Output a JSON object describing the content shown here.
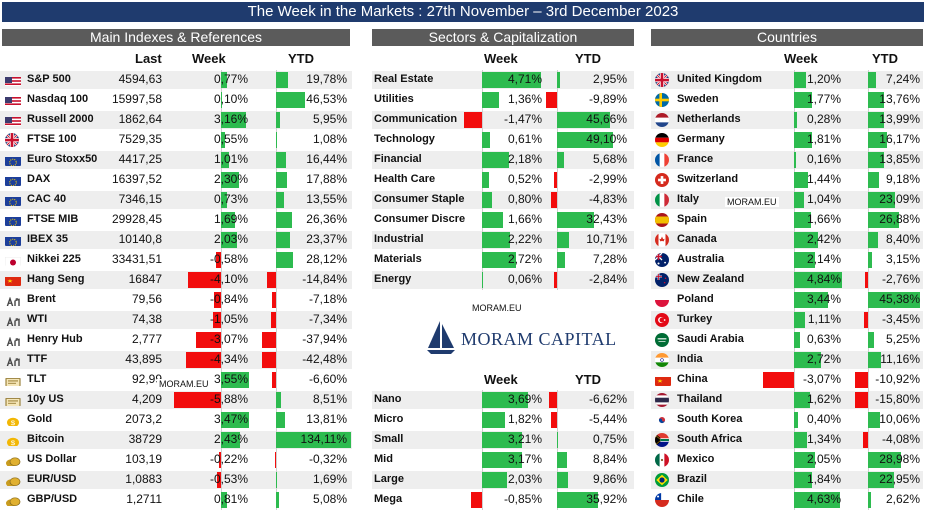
{
  "header": {
    "title": "The Week in the Markets : 27th November – 3rd December 2023"
  },
  "sections": {
    "main": {
      "title": "Main Indexes & References",
      "col_last": "Last",
      "col_week": "Week",
      "col_ytd": "YTD"
    },
    "sectors": {
      "title": "Sectors & Capitalization",
      "col_week": "Week",
      "col_ytd": "YTD"
    },
    "caps": {
      "col_week": "Week",
      "col_ytd": "YTD"
    },
    "countries": {
      "title": "Countries",
      "col_week": "Week",
      "col_ytd": "YTD"
    }
  },
  "watermarks": {
    "main": "MORAM.EU",
    "center": "MORAM.EU",
    "countries": "MORAM.EU"
  },
  "logo": {
    "text": "MORAM CAPITAL"
  },
  "colors": {
    "header": "#1f3b6e",
    "section": "#5b5b5b",
    "positive": "#2dbb4f",
    "negative": "#f20d0d"
  },
  "main_rows": [
    {
      "name": "S&P 500",
      "flag": "us-flag",
      "last": "4594,63",
      "week": "0,77%",
      "week_v": 0.77,
      "ytd": "19,78%",
      "ytd_v": 19.78
    },
    {
      "name": "Nasdaq 100",
      "flag": "us-flag",
      "last": "15997,58",
      "week": "0,10%",
      "week_v": 0.1,
      "ytd": "46,53%",
      "ytd_v": 46.53
    },
    {
      "name": "Russell 2000",
      "flag": "us-flag",
      "last": "1862,64",
      "week": "3,16%",
      "week_v": 3.16,
      "ytd": "5,95%",
      "ytd_v": 5.95
    },
    {
      "name": "FTSE 100",
      "flag": "uk-flag",
      "last": "7529,35",
      "week": "0,55%",
      "week_v": 0.55,
      "ytd": "1,08%",
      "ytd_v": 1.08
    },
    {
      "name": "Euro Stoxx50",
      "flag": "eu-flag",
      "last": "4417,25",
      "week": "1,01%",
      "week_v": 1.01,
      "ytd": "16,44%",
      "ytd_v": 16.44
    },
    {
      "name": "DAX",
      "flag": "eu-flag",
      "last": "16397,52",
      "week": "2,30%",
      "week_v": 2.3,
      "ytd": "17,88%",
      "ytd_v": 17.88
    },
    {
      "name": "CAC 40",
      "flag": "eu-flag",
      "last": "7346,15",
      "week": "0,73%",
      "week_v": 0.73,
      "ytd": "13,55%",
      "ytd_v": 13.55
    },
    {
      "name": "FTSE MIB",
      "flag": "eu-flag",
      "last": "29928,45",
      "week": "1,69%",
      "week_v": 1.69,
      "ytd": "26,36%",
      "ytd_v": 26.36
    },
    {
      "name": "IBEX 35",
      "flag": "eu-flag",
      "last": "10140,8",
      "week": "2,03%",
      "week_v": 2.03,
      "ytd": "23,37%",
      "ytd_v": 23.37
    },
    {
      "name": "Nikkei 225",
      "flag": "jp-flag",
      "last": "33431,51",
      "week": "-0,58%",
      "week_v": -0.58,
      "ytd": "28,12%",
      "ytd_v": 28.12
    },
    {
      "name": "Hang Seng",
      "flag": "cn-flag",
      "last": "16847",
      "week": "-4,10%",
      "week_v": -4.1,
      "ytd": "-14,84%",
      "ytd_v": -14.84
    },
    {
      "name": "Brent",
      "flag": "oil-icon",
      "last": "79,56",
      "week": "-0,84%",
      "week_v": -0.84,
      "ytd": "-7,18%",
      "ytd_v": -7.18
    },
    {
      "name": "WTI",
      "flag": "oil-icon",
      "last": "74,38",
      "week": "-1,05%",
      "week_v": -1.05,
      "ytd": "-7,34%",
      "ytd_v": -7.34
    },
    {
      "name": "Henry Hub",
      "flag": "oil-icon",
      "last": "2,777",
      "week": "-3,07%",
      "week_v": -3.07,
      "ytd": "-37,94%",
      "ytd_v": -37.94
    },
    {
      "name": "TTF",
      "flag": "oil-icon",
      "last": "43,895",
      "week": "-4,34%",
      "week_v": -4.34,
      "ytd": "-42,48%",
      "ytd_v": -42.48
    },
    {
      "name": "TLT",
      "flag": "bond-icon",
      "last": "92,99",
      "week": "3,55%",
      "week_v": 3.55,
      "ytd": "-6,60%",
      "ytd_v": -6.6
    },
    {
      "name": "10y US",
      "flag": "bond-icon",
      "last": "4,209",
      "week": "-5,88%",
      "week_v": -5.88,
      "ytd": "8,51%",
      "ytd_v": 8.51
    },
    {
      "name": "Gold",
      "flag": "gold-icon",
      "last": "2073,2",
      "week": "3,47%",
      "week_v": 3.47,
      "ytd": "13,81%",
      "ytd_v": 13.81
    },
    {
      "name": "Bitcoin",
      "flag": "gold-icon",
      "last": "38729",
      "week": "2,43%",
      "week_v": 2.43,
      "ytd": "134,11%",
      "ytd_v": 134.11
    },
    {
      "name": "US Dollar",
      "flag": "coins-icon",
      "last": "103,19",
      "week": "-0,22%",
      "week_v": -0.22,
      "ytd": "-0,32%",
      "ytd_v": -0.32
    },
    {
      "name": "EUR/USD",
      "flag": "coins-icon",
      "last": "1,0883",
      "week": "-0,53%",
      "week_v": -0.53,
      "ytd": "1,69%",
      "ytd_v": 1.69
    },
    {
      "name": "GBP/USD",
      "flag": "coins-icon",
      "last": "1,2711",
      "week": "0,81%",
      "week_v": 0.81,
      "ytd": "5,08%",
      "ytd_v": 5.08
    }
  ],
  "sector_rows": [
    {
      "name": "Real Estate",
      "week": "4,71%",
      "week_v": 4.71,
      "ytd": "2,95%",
      "ytd_v": 2.95
    },
    {
      "name": "Utilities",
      "week": "1,36%",
      "week_v": 1.36,
      "ytd": "-9,89%",
      "ytd_v": -9.89
    },
    {
      "name": "Communication",
      "week": "-1,47%",
      "week_v": -1.47,
      "ytd": "45,66%",
      "ytd_v": 45.66
    },
    {
      "name": "Technology",
      "week": "0,61%",
      "week_v": 0.61,
      "ytd": "49,10%",
      "ytd_v": 49.1
    },
    {
      "name": "Financial",
      "week": "2,18%",
      "week_v": 2.18,
      "ytd": "5,68%",
      "ytd_v": 5.68
    },
    {
      "name": "Health Care",
      "week": "0,52%",
      "week_v": 0.52,
      "ytd": "-2,99%",
      "ytd_v": -2.99
    },
    {
      "name": "Consumer Staple",
      "week": "0,80%",
      "week_v": 0.8,
      "ytd": "-4,83%",
      "ytd_v": -4.83
    },
    {
      "name": "Consumer Discre",
      "week": "1,66%",
      "week_v": 1.66,
      "ytd": "32,43%",
      "ytd_v": 32.43
    },
    {
      "name": "Industrial",
      "week": "2,22%",
      "week_v": 2.22,
      "ytd": "10,71%",
      "ytd_v": 10.71
    },
    {
      "name": "Materials",
      "week": "2,72%",
      "week_v": 2.72,
      "ytd": "7,28%",
      "ytd_v": 7.28
    },
    {
      "name": "Energy",
      "week": "0,06%",
      "week_v": 0.06,
      "ytd": "-2,84%",
      "ytd_v": -2.84
    }
  ],
  "cap_rows": [
    {
      "name": "Nano",
      "week": "3,69%",
      "week_v": 3.69,
      "ytd": "-6,62%",
      "ytd_v": -6.62
    },
    {
      "name": "Micro",
      "week": "1,82%",
      "week_v": 1.82,
      "ytd": "-5,44%",
      "ytd_v": -5.44
    },
    {
      "name": "Small",
      "week": "3,21%",
      "week_v": 3.21,
      "ytd": "0,75%",
      "ytd_v": 0.75
    },
    {
      "name": "Mid",
      "week": "3,17%",
      "week_v": 3.17,
      "ytd": "8,84%",
      "ytd_v": 8.84
    },
    {
      "name": "Large",
      "week": "2,03%",
      "week_v": 2.03,
      "ytd": "9,86%",
      "ytd_v": 9.86
    },
    {
      "name": "Mega",
      "week": "-0,85%",
      "week_v": -0.85,
      "ytd": "35,92%",
      "ytd_v": 35.92
    }
  ],
  "country_rows": [
    {
      "name": "United Kingdom",
      "flag": "uk-flag",
      "week": "1,20%",
      "week_v": 1.2,
      "ytd": "7,24%",
      "ytd_v": 7.24
    },
    {
      "name": "Sweden",
      "flag": "se-flag",
      "week": "1,77%",
      "week_v": 1.77,
      "ytd": "13,76%",
      "ytd_v": 13.76
    },
    {
      "name": "Netherlands",
      "flag": "nl-flag",
      "week": "0,28%",
      "week_v": 0.28,
      "ytd": "13,99%",
      "ytd_v": 13.99
    },
    {
      "name": "Germany",
      "flag": "de-flag",
      "week": "1,81%",
      "week_v": 1.81,
      "ytd": "16,17%",
      "ytd_v": 16.17
    },
    {
      "name": "France",
      "flag": "fr-flag",
      "week": "0,16%",
      "week_v": 0.16,
      "ytd": "13,85%",
      "ytd_v": 13.85
    },
    {
      "name": "Switzerland",
      "flag": "ch-flag",
      "week": "1,44%",
      "week_v": 1.44,
      "ytd": "9,18%",
      "ytd_v": 9.18
    },
    {
      "name": "Italy",
      "flag": "it-flag",
      "week": "1,04%",
      "week_v": 1.04,
      "ytd": "23,09%",
      "ytd_v": 23.09
    },
    {
      "name": "Spain",
      "flag": "es-flag",
      "week": "1,66%",
      "week_v": 1.66,
      "ytd": "26,88%",
      "ytd_v": 26.88
    },
    {
      "name": "Canada",
      "flag": "ca-flag",
      "week": "2,42%",
      "week_v": 2.42,
      "ytd": "8,40%",
      "ytd_v": 8.4
    },
    {
      "name": "Australia",
      "flag": "au-flag",
      "week": "2,14%",
      "week_v": 2.14,
      "ytd": "3,15%",
      "ytd_v": 3.15
    },
    {
      "name": "New Zealand",
      "flag": "nz-flag",
      "week": "4,84%",
      "week_v": 4.84,
      "ytd": "-2,76%",
      "ytd_v": -2.76
    },
    {
      "name": "Poland",
      "flag": "pl-flag",
      "week": "3,44%",
      "week_v": 3.44,
      "ytd": "45,38%",
      "ytd_v": 45.38
    },
    {
      "name": "Turkey",
      "flag": "tr-flag",
      "week": "1,11%",
      "week_v": 1.11,
      "ytd": "-3,45%",
      "ytd_v": -3.45
    },
    {
      "name": "Saudi Arabia",
      "flag": "sa-flag",
      "week": "0,63%",
      "week_v": 0.63,
      "ytd": "5,25%",
      "ytd_v": 5.25
    },
    {
      "name": "India",
      "flag": "in-flag",
      "week": "2,72%",
      "week_v": 2.72,
      "ytd": "11,16%",
      "ytd_v": 11.16
    },
    {
      "name": "China",
      "flag": "cn-flag",
      "week": "-3,07%",
      "week_v": -3.07,
      "ytd": "-10,92%",
      "ytd_v": -10.92
    },
    {
      "name": "Thailand",
      "flag": "th-flag",
      "week": "1,62%",
      "week_v": 1.62,
      "ytd": "-15,80%",
      "ytd_v": -15.8
    },
    {
      "name": "South Korea",
      "flag": "kr-flag",
      "week": "0,40%",
      "week_v": 0.4,
      "ytd": "10,06%",
      "ytd_v": 10.06
    },
    {
      "name": "South Africa",
      "flag": "za-flag",
      "week": "1,34%",
      "week_v": 1.34,
      "ytd": "-4,08%",
      "ytd_v": -4.08
    },
    {
      "name": "Mexico",
      "flag": "mx-flag",
      "week": "2,05%",
      "week_v": 2.05,
      "ytd": "28,98%",
      "ytd_v": 28.98
    },
    {
      "name": "Brazil",
      "flag": "br-flag",
      "week": "1,84%",
      "week_v": 1.84,
      "ytd": "22,95%",
      "ytd_v": 22.95
    },
    {
      "name": "Chile",
      "flag": "cl-flag",
      "week": "4,63%",
      "week_v": 4.63,
      "ytd": "2,62%",
      "ytd_v": 2.62
    }
  ]
}
